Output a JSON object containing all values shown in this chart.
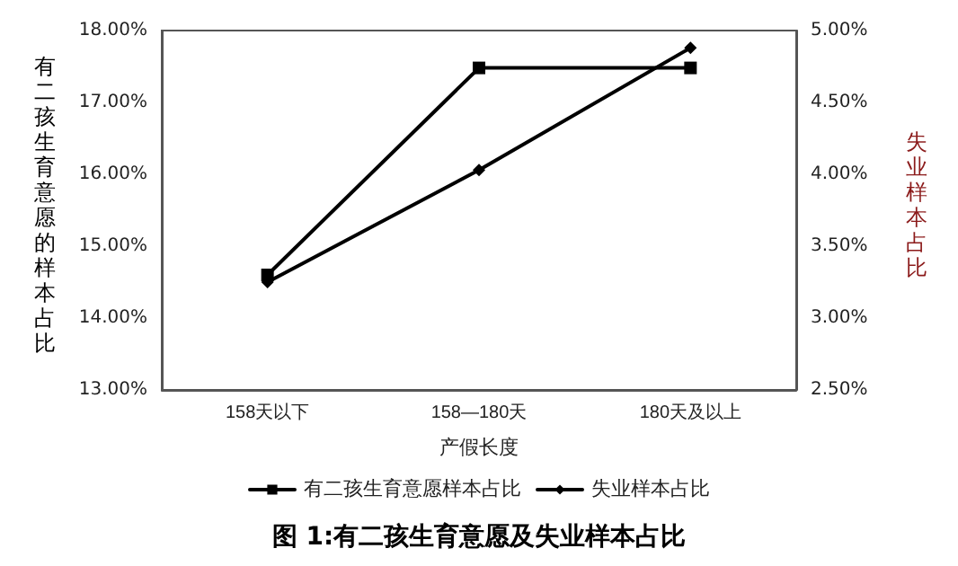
{
  "chart_data": {
    "type": "line",
    "title": "图 1:有二孩生育意愿及失业样本占比",
    "xlabel": "产假长度",
    "ylabel": "有二孩生育意愿的样本占比",
    "y2label": "失业样本占比",
    "categories": [
      "158天以下",
      "158—180天",
      "180天及以上"
    ],
    "series": [
      {
        "name": "有二孩生育意愿样本占比",
        "color": "#000000",
        "marker": "square",
        "values": [
          14.6,
          17.48,
          17.48
        ]
      },
      {
        "name": "失业样本占比",
        "color": "#000000",
        "marker": "diamond",
        "axis": "y2",
        "values": [
          3.25,
          4.03,
          4.88
        ]
      }
    ],
    "ylim": [
      13,
      18
    ],
    "yticks": [
      {
        "value": 13,
        "label": "13.00%"
      },
      {
        "value": 14,
        "label": "14.00%"
      },
      {
        "value": 15,
        "label": "15.00%"
      },
      {
        "value": 16,
        "label": "16.00%"
      },
      {
        "value": 17,
        "label": "17.00%"
      },
      {
        "value": 18,
        "label": "18.00%"
      }
    ],
    "y2lim": [
      2.5,
      5
    ],
    "y2ticks": [
      {
        "value": 2.5,
        "label": "2.50%"
      },
      {
        "value": 3,
        "label": "3.00%"
      },
      {
        "value": 3.5,
        "label": "3.50%"
      },
      {
        "value": 4,
        "label": "4.00%"
      },
      {
        "value": 4.5,
        "label": "4.50%"
      },
      {
        "value": 5,
        "label": "5.00%"
      }
    ],
    "grid": false,
    "legend": "bottom",
    "line_style": "solid"
  }
}
